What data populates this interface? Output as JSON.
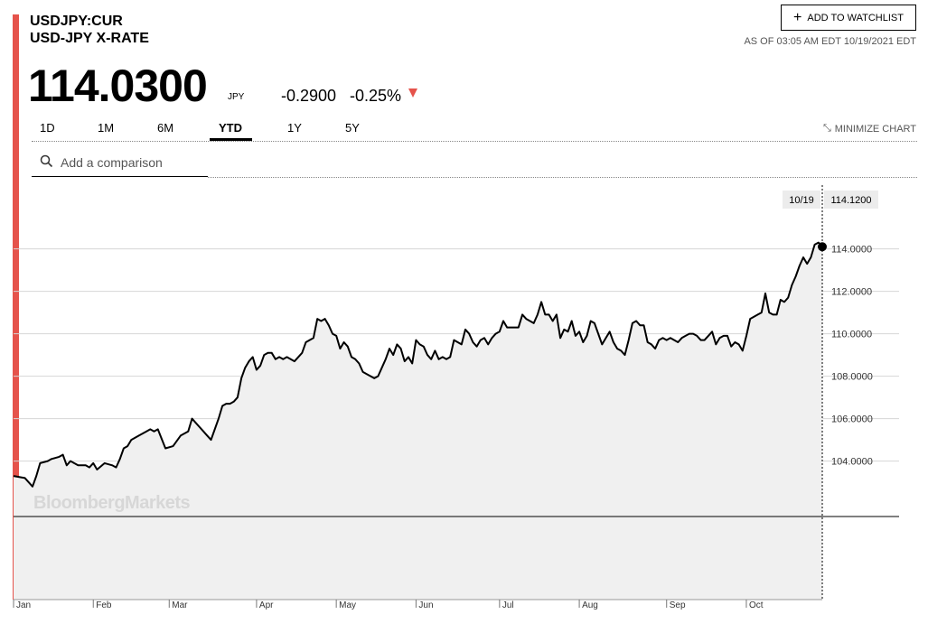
{
  "header": {
    "ticker": "USDJPY:CUR",
    "name": "USD-JPY X-RATE",
    "price": "114.0300",
    "currency": "JPY",
    "change": "-0.2900",
    "change_pct": "-0.25%",
    "watchlist_label": "ADD TO WATCHLIST",
    "as_of": "AS OF 03:05 AM EDT 10/19/2021 EDT",
    "accent_color": "#e5534b"
  },
  "tabs": [
    {
      "label": "1D",
      "active": false
    },
    {
      "label": "1M",
      "active": false
    },
    {
      "label": "6M",
      "active": false
    },
    {
      "label": "YTD",
      "active": true
    },
    {
      "label": "1Y",
      "active": false
    },
    {
      "label": "5Y",
      "active": false
    }
  ],
  "minimize_label": "MINIMIZE CHART",
  "comparison": {
    "placeholder": "Add a comparison"
  },
  "watermark": "BloombergMarkets",
  "tooltip": {
    "date": "10/19",
    "value": "114.1200"
  },
  "chart_data": {
    "type": "area",
    "title": "",
    "xlabel": "",
    "ylabel": "",
    "x_labels": [
      "Jan",
      "Feb",
      "Mar",
      "Apr",
      "May",
      "Jun",
      "Jul",
      "Aug",
      "Sep",
      "Oct"
    ],
    "y_ticks": [
      "104.0000",
      "106.0000",
      "108.0000",
      "110.0000",
      "112.0000",
      "114.0000"
    ],
    "ylim": [
      102.0,
      115.0
    ],
    "grid": true,
    "series": [
      {
        "values": [
          [
            0,
            103.3
          ],
          [
            3,
            103.2
          ],
          [
            5,
            102.8
          ],
          [
            6,
            103.3
          ],
          [
            7,
            103.9
          ],
          [
            9,
            104.0
          ],
          [
            10,
            104.1
          ],
          [
            12,
            104.2
          ],
          [
            13,
            104.3
          ],
          [
            14,
            103.8
          ],
          [
            15,
            104.0
          ],
          [
            17,
            103.8
          ],
          [
            19,
            103.8
          ],
          [
            20,
            103.7
          ],
          [
            21,
            103.9
          ],
          [
            22,
            103.6
          ],
          [
            24,
            103.9
          ],
          [
            26,
            103.8
          ],
          [
            27,
            103.7
          ],
          [
            28,
            104.1
          ],
          [
            29,
            104.6
          ],
          [
            30,
            104.7
          ],
          [
            31,
            105.0
          ],
          [
            33,
            105.2
          ],
          [
            35,
            105.4
          ],
          [
            36,
            105.5
          ],
          [
            37,
            105.4
          ],
          [
            38,
            105.5
          ],
          [
            40,
            104.6
          ],
          [
            42,
            104.7
          ],
          [
            44,
            105.2
          ],
          [
            46,
            105.4
          ],
          [
            47,
            106.0
          ],
          [
            48,
            105.8
          ],
          [
            49,
            105.6
          ],
          [
            50,
            105.4
          ],
          [
            51,
            105.2
          ],
          [
            52,
            105.0
          ],
          [
            53,
            105.5
          ],
          [
            54,
            106.0
          ],
          [
            55,
            106.6
          ],
          [
            56,
            106.7
          ],
          [
            57,
            106.7
          ],
          [
            58,
            106.8
          ],
          [
            59,
            107.0
          ],
          [
            60,
            107.9
          ],
          [
            61,
            108.4
          ],
          [
            62,
            108.7
          ],
          [
            63,
            108.9
          ],
          [
            64,
            108.3
          ],
          [
            65,
            108.5
          ],
          [
            66,
            109.0
          ],
          [
            67,
            109.1
          ],
          [
            68,
            109.1
          ],
          [
            69,
            108.8
          ],
          [
            70,
            108.9
          ],
          [
            71,
            108.8
          ],
          [
            72,
            108.9
          ],
          [
            73,
            108.8
          ],
          [
            74,
            108.7
          ],
          [
            75,
            108.9
          ],
          [
            76,
            109.1
          ],
          [
            77,
            109.6
          ],
          [
            78,
            109.7
          ],
          [
            79,
            109.8
          ],
          [
            80,
            110.7
          ],
          [
            81,
            110.6
          ],
          [
            82,
            110.7
          ],
          [
            83,
            110.4
          ],
          [
            84,
            110.0
          ],
          [
            85,
            109.9
          ],
          [
            86,
            109.3
          ],
          [
            87,
            109.6
          ],
          [
            88,
            109.4
          ],
          [
            89,
            108.9
          ],
          [
            90,
            108.8
          ],
          [
            91,
            108.6
          ],
          [
            92,
            108.2
          ],
          [
            93,
            108.1
          ],
          [
            95,
            107.9
          ],
          [
            96,
            108.0
          ],
          [
            97,
            108.4
          ],
          [
            98,
            108.8
          ],
          [
            99,
            109.3
          ],
          [
            100,
            109.0
          ],
          [
            101,
            109.5
          ],
          [
            102,
            109.3
          ],
          [
            103,
            108.7
          ],
          [
            104,
            108.9
          ],
          [
            105,
            108.6
          ],
          [
            106,
            109.7
          ],
          [
            107,
            109.5
          ],
          [
            108,
            109.4
          ],
          [
            109,
            109.0
          ],
          [
            110,
            108.8
          ],
          [
            111,
            109.2
          ],
          [
            112,
            108.8
          ],
          [
            113,
            108.9
          ],
          [
            114,
            108.8
          ],
          [
            115,
            108.9
          ],
          [
            116,
            109.7
          ],
          [
            117,
            109.6
          ],
          [
            118,
            109.5
          ],
          [
            119,
            110.2
          ],
          [
            120,
            110.0
          ],
          [
            121,
            109.6
          ],
          [
            122,
            109.4
          ],
          [
            123,
            109.7
          ],
          [
            124,
            109.8
          ],
          [
            125,
            109.5
          ],
          [
            126,
            109.8
          ],
          [
            127,
            110.0
          ],
          [
            128,
            110.1
          ],
          [
            129,
            110.6
          ],
          [
            130,
            110.3
          ],
          [
            131,
            110.3
          ],
          [
            133,
            110.3
          ],
          [
            134,
            110.9
          ],
          [
            135,
            110.7
          ],
          [
            136,
            110.6
          ],
          [
            137,
            110.5
          ],
          [
            138,
            110.9
          ],
          [
            139,
            111.5
          ],
          [
            140,
            110.9
          ],
          [
            141,
            110.9
          ],
          [
            142,
            110.6
          ],
          [
            143,
            110.9
          ],
          [
            144,
            109.8
          ],
          [
            145,
            110.2
          ],
          [
            146,
            110.1
          ],
          [
            147,
            110.6
          ],
          [
            148,
            109.9
          ],
          [
            149,
            110.1
          ],
          [
            150,
            109.6
          ],
          [
            151,
            109.9
          ],
          [
            152,
            110.6
          ],
          [
            153,
            110.5
          ],
          [
            154,
            110.0
          ],
          [
            155,
            109.5
          ],
          [
            156,
            109.8
          ],
          [
            157,
            110.1
          ],
          [
            158,
            109.6
          ],
          [
            159,
            109.3
          ],
          [
            160,
            109.2
          ],
          [
            161,
            109.0
          ],
          [
            162,
            109.7
          ],
          [
            163,
            110.5
          ],
          [
            164,
            110.6
          ],
          [
            165,
            110.4
          ],
          [
            166,
            110.4
          ],
          [
            167,
            109.6
          ],
          [
            168,
            109.5
          ],
          [
            169,
            109.3
          ],
          [
            170,
            109.7
          ],
          [
            171,
            109.8
          ],
          [
            172,
            109.7
          ],
          [
            173,
            109.8
          ],
          [
            175,
            109.6
          ],
          [
            176,
            109.8
          ],
          [
            177,
            109.9
          ],
          [
            178,
            110.0
          ],
          [
            179,
            110.0
          ],
          [
            180,
            109.9
          ],
          [
            181,
            109.7
          ],
          [
            182,
            109.7
          ],
          [
            183,
            109.9
          ],
          [
            184,
            110.1
          ],
          [
            185,
            109.5
          ],
          [
            186,
            109.8
          ],
          [
            187,
            109.9
          ],
          [
            188,
            109.9
          ],
          [
            189,
            109.4
          ],
          [
            190,
            109.6
          ],
          [
            191,
            109.5
          ],
          [
            192,
            109.2
          ],
          [
            193,
            109.9
          ],
          [
            194,
            110.7
          ],
          [
            195,
            110.8
          ],
          [
            196,
            110.9
          ],
          [
            197,
            111.0
          ],
          [
            198,
            111.9
          ],
          [
            199,
            111.0
          ],
          [
            200,
            110.9
          ],
          [
            201,
            110.9
          ],
          [
            202,
            111.6
          ],
          [
            203,
            111.5
          ],
          [
            204,
            111.7
          ],
          [
            205,
            112.3
          ],
          [
            206,
            112.7
          ],
          [
            207,
            113.2
          ],
          [
            208,
            113.6
          ],
          [
            209,
            113.3
          ],
          [
            210,
            113.6
          ],
          [
            211,
            114.2
          ],
          [
            212,
            114.3
          ],
          [
            213,
            114.1
          ]
        ]
      }
    ]
  }
}
